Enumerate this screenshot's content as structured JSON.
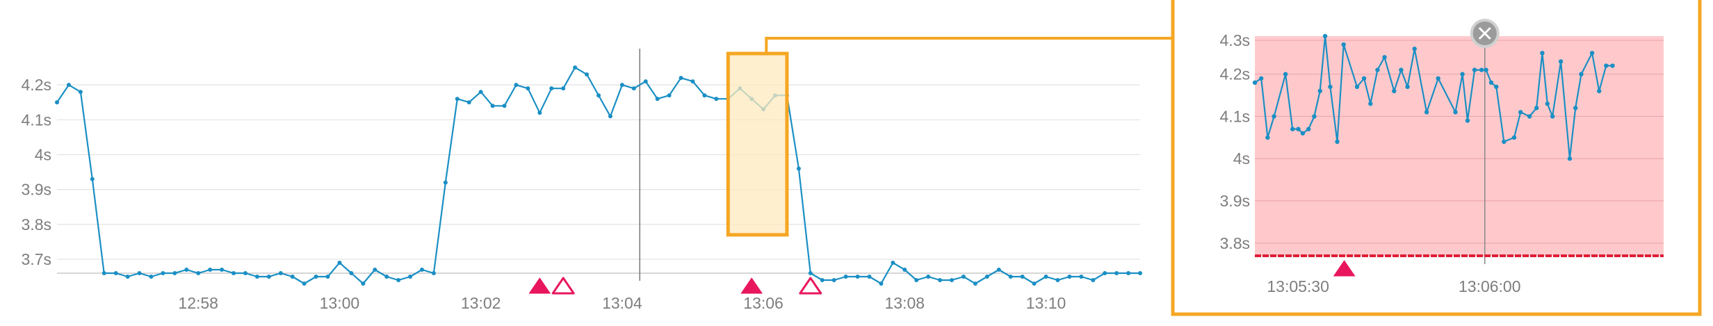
{
  "colors": {
    "line": "#1a8fc4",
    "grid": "#e2e2e2",
    "axis": "#c9c9c9",
    "tick_text": "#7d7d7d",
    "event": "#e8175d",
    "zoom_frame": "#f5a623",
    "zoom_fill": "#fde9bd",
    "alert_fill": "#ffc9cc",
    "threshold": "#e01e37",
    "close_button": "#9b9b9b"
  },
  "icons": {
    "close": "close-icon",
    "event_marker": "triangle-up-icon"
  },
  "chart_data": [
    {
      "type": "line",
      "name": "main",
      "y_unit": "s",
      "ylim": [
        3.66,
        4.3
      ],
      "ytick_values": [
        3.7,
        3.8,
        3.9,
        4.0,
        4.1,
        4.2
      ],
      "ytick_labels": [
        "3.7s",
        "3.8s",
        "3.9s",
        "4s",
        "4.1s",
        "4.2s"
      ],
      "xlim": [
        "12:56:00",
        "13:11:20"
      ],
      "xtick_values": [
        "12:58:00",
        "13:00:00",
        "13:02:00",
        "13:04:00",
        "13:06:00",
        "13:08:00",
        "13:10:00"
      ],
      "xtick_labels": [
        "12:58",
        "13:00",
        "13:02",
        "13:04",
        "13:06",
        "13:08",
        "13:10"
      ],
      "grid": true,
      "cursor_time": "13:04:15",
      "zoom_range": {
        "start": "13:05:30",
        "end": "13:06:20",
        "low": 3.77,
        "high": 4.29
      },
      "events": [
        {
          "time": "13:02:50",
          "filled": true
        },
        {
          "time": "13:03:10",
          "filled": false
        },
        {
          "time": "13:05:50",
          "filled": true
        },
        {
          "time": "13:06:40",
          "filled": false
        }
      ],
      "series": [
        {
          "points": [
            [
              "12:56:00",
              4.15
            ],
            [
              "12:56:10",
              4.2
            ],
            [
              "12:56:20",
              4.18
            ],
            [
              "12:56:30",
              3.93
            ],
            [
              "12:56:40",
              3.66
            ],
            [
              "12:56:50",
              3.66
            ],
            [
              "12:57:00",
              3.65
            ],
            [
              "12:57:10",
              3.66
            ],
            [
              "12:57:20",
              3.65
            ],
            [
              "12:57:30",
              3.66
            ],
            [
              "12:57:40",
              3.66
            ],
            [
              "12:57:50",
              3.67
            ],
            [
              "12:58:00",
              3.66
            ],
            [
              "12:58:10",
              3.67
            ],
            [
              "12:58:20",
              3.67
            ],
            [
              "12:58:30",
              3.66
            ],
            [
              "12:58:40",
              3.66
            ],
            [
              "12:58:50",
              3.65
            ],
            [
              "12:59:00",
              3.65
            ],
            [
              "12:59:10",
              3.66
            ],
            [
              "12:59:20",
              3.65
            ],
            [
              "12:59:30",
              3.63
            ],
            [
              "12:59:40",
              3.65
            ],
            [
              "12:59:50",
              3.65
            ],
            [
              "13:00:00",
              3.69
            ],
            [
              "13:00:10",
              3.66
            ],
            [
              "13:00:20",
              3.63
            ],
            [
              "13:00:30",
              3.67
            ],
            [
              "13:00:40",
              3.65
            ],
            [
              "13:00:50",
              3.64
            ],
            [
              "13:01:00",
              3.65
            ],
            [
              "13:01:10",
              3.67
            ],
            [
              "13:01:20",
              3.66
            ],
            [
              "13:01:30",
              3.92
            ],
            [
              "13:01:40",
              4.16
            ],
            [
              "13:01:50",
              4.15
            ],
            [
              "13:02:00",
              4.18
            ],
            [
              "13:02:10",
              4.14
            ],
            [
              "13:02:20",
              4.14
            ],
            [
              "13:02:30",
              4.2
            ],
            [
              "13:02:40",
              4.19
            ],
            [
              "13:02:50",
              4.12
            ],
            [
              "13:03:00",
              4.19
            ],
            [
              "13:03:10",
              4.19
            ],
            [
              "13:03:20",
              4.25
            ],
            [
              "13:03:30",
              4.23
            ],
            [
              "13:03:40",
              4.17
            ],
            [
              "13:03:50",
              4.11
            ],
            [
              "13:04:00",
              4.2
            ],
            [
              "13:04:10",
              4.19
            ],
            [
              "13:04:20",
              4.21
            ],
            [
              "13:04:30",
              4.16
            ],
            [
              "13:04:40",
              4.17
            ],
            [
              "13:04:50",
              4.22
            ],
            [
              "13:05:00",
              4.21
            ],
            [
              "13:05:10",
              4.17
            ],
            [
              "13:05:20",
              4.16
            ],
            [
              "13:05:30",
              4.16
            ],
            [
              "13:05:40",
              4.19
            ],
            [
              "13:05:50",
              4.16
            ],
            [
              "13:06:00",
              4.13
            ],
            [
              "13:06:10",
              4.17
            ],
            [
              "13:06:20",
              4.17
            ],
            [
              "13:06:30",
              3.96
            ],
            [
              "13:06:40",
              3.66
            ],
            [
              "13:06:50",
              3.64
            ],
            [
              "13:07:00",
              3.64
            ],
            [
              "13:07:10",
              3.65
            ],
            [
              "13:07:20",
              3.65
            ],
            [
              "13:07:30",
              3.65
            ],
            [
              "13:07:40",
              3.63
            ],
            [
              "13:07:50",
              3.69
            ],
            [
              "13:08:00",
              3.67
            ],
            [
              "13:08:10",
              3.64
            ],
            [
              "13:08:20",
              3.65
            ],
            [
              "13:08:30",
              3.64
            ],
            [
              "13:08:40",
              3.64
            ],
            [
              "13:08:50",
              3.65
            ],
            [
              "13:09:00",
              3.63
            ],
            [
              "13:09:10",
              3.65
            ],
            [
              "13:09:20",
              3.67
            ],
            [
              "13:09:30",
              3.65
            ],
            [
              "13:09:40",
              3.65
            ],
            [
              "13:09:50",
              3.63
            ],
            [
              "13:10:00",
              3.65
            ],
            [
              "13:10:10",
              3.64
            ],
            [
              "13:10:20",
              3.65
            ],
            [
              "13:10:30",
              3.65
            ],
            [
              "13:10:40",
              3.64
            ],
            [
              "13:10:50",
              3.66
            ],
            [
              "13:11:00",
              3.66
            ],
            [
              "13:11:10",
              3.66
            ],
            [
              "13:11:20",
              3.66
            ]
          ]
        }
      ]
    },
    {
      "type": "line",
      "name": "zoom",
      "y_unit": "s",
      "ylim": [
        3.77,
        4.29
      ],
      "ytick_values": [
        3.8,
        3.9,
        4.0,
        4.1,
        4.2,
        4.28
      ],
      "ytick_labels": [
        "3.8s",
        "3.9s",
        "4s",
        "4.1s",
        "4.2s",
        "4.3s"
      ],
      "xlim": [
        "13:05:24",
        "13:06:28"
      ],
      "xtick_values": [
        "13:05:30",
        "13:06:00"
      ],
      "xtick_labels": [
        "13:05:30",
        "13:06:00"
      ],
      "grid": true,
      "cursor_time": "13:06:00",
      "threshold": 3.77,
      "alert_region": true,
      "events": [
        {
          "time": "13:05:38",
          "filled": true
        }
      ],
      "series": [
        {
          "points": [
            [
              "13:05:24.0",
              4.18
            ],
            [
              "13:05:25.0",
              4.19
            ],
            [
              "13:05:26.0",
              4.05
            ],
            [
              "13:05:27.0",
              4.1
            ],
            [
              "13:05:28.8",
              4.2
            ],
            [
              "13:05:29.9",
              4.07
            ],
            [
              "13:05:30.8",
              4.07
            ],
            [
              "13:05:31.5",
              4.06
            ],
            [
              "13:05:32.4",
              4.07
            ],
            [
              "13:05:33.3",
              4.1
            ],
            [
              "13:05:34.2",
              4.16
            ],
            [
              "13:05:35.0",
              4.29
            ],
            [
              "13:05:35.8",
              4.17
            ],
            [
              "13:05:36.9",
              4.04
            ],
            [
              "13:05:37.9",
              4.27
            ],
            [
              "13:05:40.0",
              4.17
            ],
            [
              "13:05:41.1",
              4.19
            ],
            [
              "13:05:42.1",
              4.13
            ],
            [
              "13:05:43.2",
              4.21
            ],
            [
              "13:05:44.3",
              4.24
            ],
            [
              "13:05:45.8",
              4.16
            ],
            [
              "13:05:46.9",
              4.21
            ],
            [
              "13:05:47.9",
              4.17
            ],
            [
              "13:05:49.0",
              4.26
            ],
            [
              "13:05:50.9",
              4.11
            ],
            [
              "13:05:52.7",
              4.19
            ],
            [
              "13:05:55.4",
              4.11
            ],
            [
              "13:05:56.5",
              4.2
            ],
            [
              "13:05:57.3",
              4.09
            ],
            [
              "13:05:58.4",
              4.21
            ],
            [
              "13:05:59.5",
              4.21
            ],
            [
              "13:06:00.2",
              4.21
            ],
            [
              "13:06:01.0",
              4.18
            ],
            [
              "13:06:01.8",
              4.17
            ],
            [
              "13:06:03.0",
              4.04
            ],
            [
              "13:06:04.6",
              4.05
            ],
            [
              "13:06:05.6",
              4.11
            ],
            [
              "13:06:07.0",
              4.1
            ],
            [
              "13:06:08.1",
              4.12
            ],
            [
              "13:06:09.0",
              4.25
            ],
            [
              "13:06:09.8",
              4.13
            ],
            [
              "13:06:10.6",
              4.1
            ],
            [
              "13:06:11.9",
              4.23
            ],
            [
              "13:06:13.3",
              4.0
            ],
            [
              "13:06:14.2",
              4.12
            ],
            [
              "13:06:15.1",
              4.2
            ],
            [
              "13:06:16.8",
              4.25
            ],
            [
              "13:06:17.9",
              4.16
            ],
            [
              "13:06:19.0",
              4.22
            ],
            [
              "13:06:20.0",
              4.22
            ]
          ]
        }
      ]
    }
  ]
}
